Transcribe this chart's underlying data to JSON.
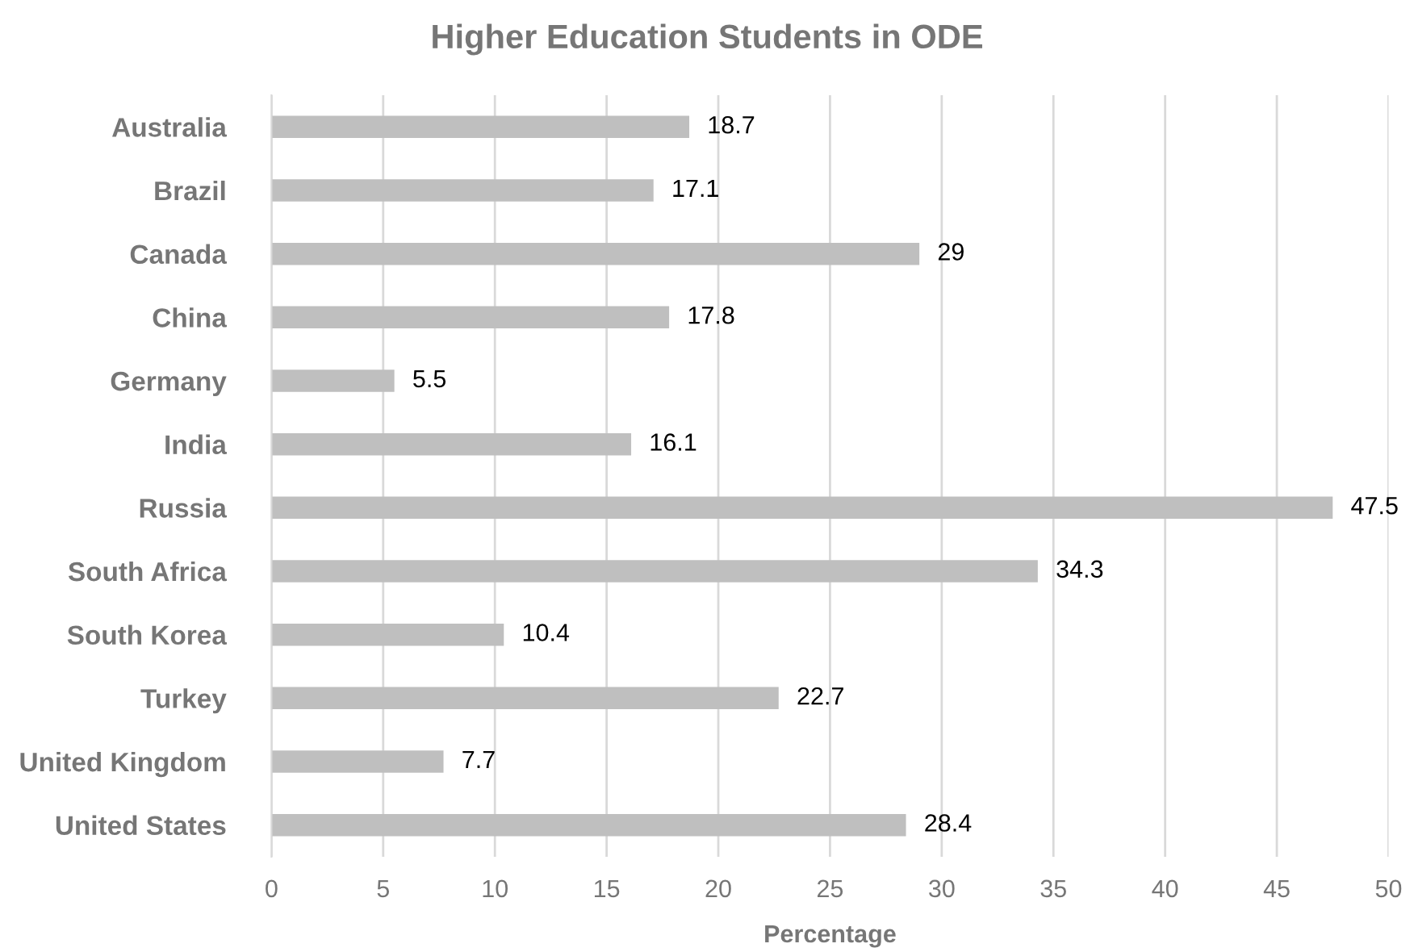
{
  "chart_data": {
    "type": "bar",
    "orientation": "horizontal",
    "title": "Higher Education Students in ODE",
    "xlabel": "Percentage",
    "categories": [
      "Australia",
      "Brazil",
      "Canada",
      "China",
      "Germany",
      "India",
      "Russia",
      "South Africa",
      "South Korea",
      "Turkey",
      "United Kingdom",
      "United States"
    ],
    "values": [
      18.7,
      17.1,
      29,
      17.8,
      5.5,
      16.1,
      47.5,
      34.3,
      10.4,
      22.7,
      7.7,
      28.4
    ],
    "color": "#bfbfbf",
    "xlim": [
      0,
      50
    ],
    "xticks": [
      0,
      5,
      10,
      15,
      20,
      25,
      30,
      35,
      40,
      45,
      50
    ],
    "grid": "x",
    "data_labels": true,
    "legend": false
  }
}
